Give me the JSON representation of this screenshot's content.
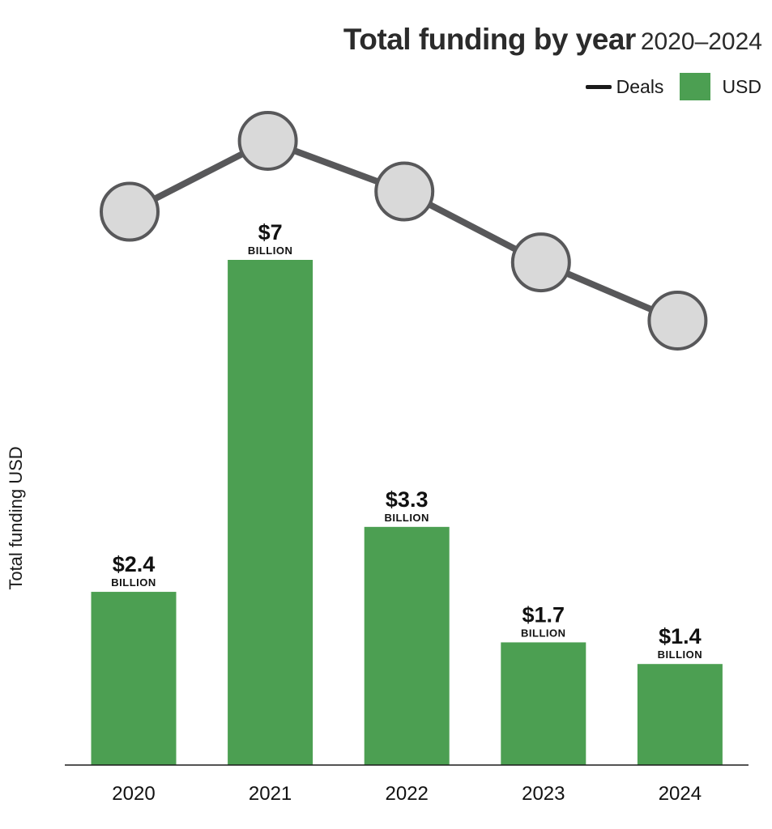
{
  "chart_data": {
    "type": "bar",
    "title": "Total funding by year",
    "subtitle": "2020–2024",
    "ylabel": "Total funding USD",
    "categories": [
      "2020",
      "2021",
      "2022",
      "2023",
      "2024"
    ],
    "series": [
      {
        "name": "USD",
        "type": "bar",
        "unit": "billion USD",
        "values": [
          2.4,
          7,
          3.3,
          1.7,
          1.4
        ],
        "value_labels": [
          "$2.4",
          "$7",
          "$3.3",
          "$1.7",
          "$1.4"
        ],
        "unit_labels": [
          "BILLION",
          "BILLION",
          "BILLION",
          "BILLION",
          "BILLION"
        ],
        "color": "#4c9f52"
      },
      {
        "name": "Deals",
        "type": "line",
        "relative_levels": [
          0.72,
          1.0,
          0.8,
          0.52,
          0.29
        ],
        "color": "#58585a",
        "marker_fill": "#d9d9d9"
      }
    ],
    "legend": [
      "Deals",
      "USD"
    ],
    "legend_position": "top-right",
    "ylim": [
      0,
      7
    ],
    "grid": false
  }
}
